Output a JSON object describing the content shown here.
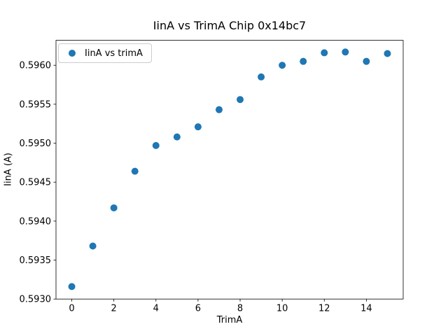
{
  "figure": {
    "background": "#ffffff"
  },
  "chart_data": {
    "type": "scatter",
    "title": "IinA vs TrimA Chip 0x14bc7",
    "xlabel": "TrimA",
    "ylabel": "IinA (A)",
    "x": [
      0,
      1,
      2,
      3,
      4,
      5,
      6,
      7,
      8,
      9,
      10,
      11,
      12,
      13,
      14,
      15
    ],
    "series": [
      {
        "name": "IinA vs trimA",
        "color": "#1f77b4",
        "values": [
          0.59316,
          0.59368,
          0.59417,
          0.59464,
          0.59497,
          0.59508,
          0.59521,
          0.59543,
          0.59556,
          0.59585,
          0.596,
          0.59605,
          0.59616,
          0.59617,
          0.59605,
          0.59615
        ]
      }
    ],
    "xlim": [
      -0.75,
      15.75
    ],
    "ylim": [
      0.593,
      0.59632
    ],
    "xticks": [
      "0",
      "2",
      "4",
      "6",
      "8",
      "10",
      "12",
      "14"
    ],
    "yticks": [
      "0.5930",
      "0.5935",
      "0.5940",
      "0.5945",
      "0.5950",
      "0.5955",
      "0.5960"
    ],
    "grid": false,
    "marker": "circle",
    "marker_radius_px": 5,
    "legend": {
      "position": "upper left",
      "entries": [
        {
          "label": "IinA vs trimA",
          "marker": "circle",
          "color": "#1f77b4"
        }
      ]
    }
  },
  "colors": {
    "axis": "#000000",
    "tick_text": "#000000",
    "legend_border": "#cccccc",
    "background": "#ffffff"
  }
}
